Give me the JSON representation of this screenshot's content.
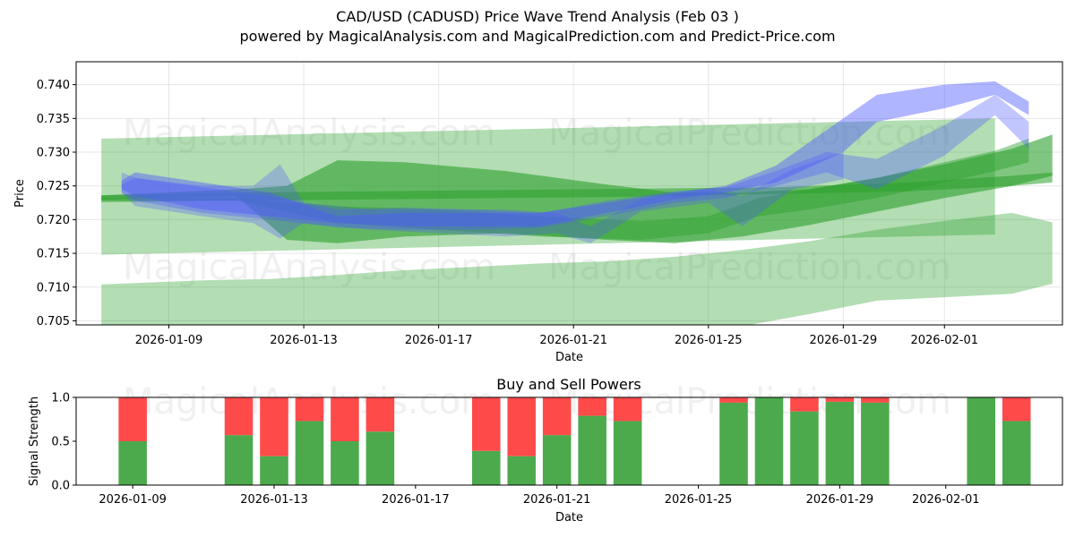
{
  "header": {
    "title": "CAD/USD (CADUSD) Price Wave Trend Analysis (Feb 03 )",
    "subtitle": "powered by MagicalAnalysis.com and MagicalPrediction.com and Predict-Price.com"
  },
  "watermarks": [
    "MagicalAnalysis.com",
    "MagicalPrediction.com"
  ],
  "colors": {
    "green_band": "#2ca02c",
    "blue_band": "#4f5bff",
    "buy": "#4caa4c",
    "sell": "#ff4a4a"
  },
  "chart_data": [
    {
      "type": "area",
      "title": "",
      "xlabel": "Date",
      "ylabel": "Price",
      "ylim": [
        0.7044,
        0.7434
      ],
      "xlim_days": [
        -2.75,
        26.5
      ],
      "x_origin": "2026-01-09",
      "xticks": [
        {
          "day": 0,
          "label": "2026-01-09"
        },
        {
          "day": 4,
          "label": "2026-01-13"
        },
        {
          "day": 8,
          "label": "2026-01-17"
        },
        {
          "day": 12,
          "label": "2026-01-21"
        },
        {
          "day": 16,
          "label": "2026-01-25"
        },
        {
          "day": 20,
          "label": "2026-01-29"
        },
        {
          "day": 23,
          "label": "2026-02-01"
        }
      ],
      "yticks": [
        0.705,
        0.71,
        0.715,
        0.72,
        0.725,
        0.73,
        0.735,
        0.74
      ],
      "green_bands": [
        {
          "x": [
            -2,
            24.5
          ],
          "upper": [
            0.732,
            0.735
          ],
          "lower": [
            0.7148,
            0.7178
          ]
        },
        {
          "x": [
            -2,
            1,
            3,
            5,
            7,
            9,
            11,
            13,
            15,
            17,
            19,
            21,
            23,
            25,
            26.2
          ],
          "upper": [
            0.7104,
            0.711,
            0.7112,
            0.7118,
            0.7125,
            0.713,
            0.7135,
            0.7138,
            0.7145,
            0.7155,
            0.7168,
            0.7185,
            0.7198,
            0.721,
            0.7196
          ],
          "lower": [
            0.704,
            0.704,
            0.704,
            0.704,
            0.704,
            0.704,
            0.704,
            0.704,
            0.704,
            0.7042,
            0.706,
            0.708,
            0.7085,
            0.709,
            0.7105
          ]
        },
        {
          "x": [
            -2,
            2,
            6,
            10,
            14,
            18,
            22,
            25,
            26.2
          ],
          "upper": [
            0.7236,
            0.724,
            0.7242,
            0.7244,
            0.7246,
            0.7248,
            0.7255,
            0.7265,
            0.727
          ],
          "lower": [
            0.7226,
            0.7228,
            0.723,
            0.7232,
            0.7234,
            0.7238,
            0.7242,
            0.725,
            0.7255
          ]
        },
        {
          "x": [
            -2,
            2,
            3.5,
            5,
            7,
            10,
            13,
            15,
            17,
            19,
            21,
            23,
            25,
            26.2
          ],
          "upper": [
            0.7236,
            0.7245,
            0.725,
            0.7288,
            0.7285,
            0.7272,
            0.7252,
            0.724,
            0.724,
            0.7245,
            0.7262,
            0.7282,
            0.7305,
            0.7326
          ],
          "lower": [
            0.723,
            0.7235,
            0.717,
            0.7165,
            0.7175,
            0.718,
            0.717,
            0.7165,
            0.7175,
            0.7192,
            0.7212,
            0.7232,
            0.725,
            0.7265
          ]
        },
        {
          "x": [
            -2,
            2,
            5,
            8,
            11,
            14,
            16,
            17.5,
            19,
            21,
            23,
            24.5,
            25.5
          ],
          "upper": [
            0.7232,
            0.7232,
            0.722,
            0.7215,
            0.7205,
            0.7198,
            0.7205,
            0.7232,
            0.7245,
            0.7262,
            0.7285,
            0.7302,
            0.732
          ],
          "lower": [
            0.7228,
            0.7228,
            0.7195,
            0.7185,
            0.7175,
            0.717,
            0.718,
            0.7205,
            0.7215,
            0.7232,
            0.7255,
            0.7272,
            0.7285
          ]
        }
      ],
      "blue_bands": [
        {
          "x": [
            -1.4,
            -1,
            1,
            3,
            5,
            7,
            9,
            11,
            13,
            15,
            16.5,
            18,
            20,
            21,
            23,
            24.5,
            25.5
          ],
          "upper": [
            0.7258,
            0.727,
            0.7255,
            0.724,
            0.7205,
            0.721,
            0.721,
            0.721,
            0.7225,
            0.724,
            0.725,
            0.728,
            0.735,
            0.7385,
            0.74,
            0.7405,
            0.7375
          ],
          "lower": [
            0.7245,
            0.7235,
            0.7215,
            0.7205,
            0.7195,
            0.719,
            0.719,
            0.719,
            0.721,
            0.723,
            0.724,
            0.7255,
            0.73,
            0.7345,
            0.7365,
            0.7385,
            0.7355
          ]
        },
        {
          "x": [
            -1.4,
            -1,
            1,
            3,
            5,
            7,
            9,
            11,
            13,
            15,
            16.5,
            18,
            19.5,
            21,
            23,
            24.5,
            25.5
          ],
          "upper": [
            0.7252,
            0.7262,
            0.7248,
            0.7235,
            0.7215,
            0.7218,
            0.7215,
            0.721,
            0.7228,
            0.7242,
            0.7248,
            0.7272,
            0.73,
            0.729,
            0.734,
            0.7385,
            0.7345
          ],
          "lower": [
            0.724,
            0.7228,
            0.721,
            0.72,
            0.7188,
            0.7185,
            0.7185,
            0.7188,
            0.7205,
            0.7225,
            0.7232,
            0.725,
            0.727,
            0.7245,
            0.7295,
            0.7355,
            0.7305
          ]
        },
        {
          "x": [
            -1.4,
            -1,
            1,
            2.5,
            3.3,
            4,
            6,
            8,
            10,
            11.5,
            12.5,
            14,
            16,
            17,
            18.5,
            20
          ],
          "upper": [
            0.727,
            0.7262,
            0.725,
            0.725,
            0.7282,
            0.7225,
            0.7215,
            0.7215,
            0.7215,
            0.721,
            0.719,
            0.723,
            0.7245,
            0.7235,
            0.7275,
            0.73
          ],
          "lower": [
            0.724,
            0.722,
            0.7205,
            0.7195,
            0.7172,
            0.7195,
            0.7185,
            0.718,
            0.7175,
            0.718,
            0.7165,
            0.7212,
            0.7225,
            0.719,
            0.7245,
            0.726
          ]
        }
      ]
    },
    {
      "type": "bar",
      "title": "Buy and Sell Powers",
      "xlabel": "Date",
      "ylabel": "Signal Strength",
      "ylim": [
        0,
        1
      ],
      "xlim_days": [
        -1.6,
        26.3
      ],
      "yticks": [
        0.0,
        0.5,
        1.0
      ],
      "xticks": [
        {
          "day": 0,
          "label": "2026-01-09"
        },
        {
          "day": 4,
          "label": "2026-01-13"
        },
        {
          "day": 8,
          "label": "2026-01-17"
        },
        {
          "day": 12,
          "label": "2026-01-21"
        },
        {
          "day": 16,
          "label": "2026-01-25"
        },
        {
          "day": 20,
          "label": "2026-01-29"
        },
        {
          "day": 23,
          "label": "2026-02-01"
        }
      ],
      "series": [
        {
          "name": "Buy",
          "color": "#4caa4c"
        },
        {
          "name": "Sell",
          "color": "#ff4a4a"
        }
      ],
      "bars": [
        {
          "day": 0,
          "buy": 0.5
        },
        {
          "day": 3,
          "buy": 0.57
        },
        {
          "day": 4,
          "buy": 0.33
        },
        {
          "day": 5,
          "buy": 0.73
        },
        {
          "day": 6,
          "buy": 0.5
        },
        {
          "day": 7,
          "buy": 0.61
        },
        {
          "day": 10,
          "buy": 0.39
        },
        {
          "day": 11,
          "buy": 0.33
        },
        {
          "day": 12,
          "buy": 0.57
        },
        {
          "day": 13,
          "buy": 0.79
        },
        {
          "day": 14,
          "buy": 0.73
        },
        {
          "day": 17,
          "buy": 0.94
        },
        {
          "day": 18,
          "buy": 1.0
        },
        {
          "day": 19,
          "buy": 0.84
        },
        {
          "day": 20,
          "buy": 0.95
        },
        {
          "day": 21,
          "buy": 0.94
        },
        {
          "day": 24,
          "buy": 1.0
        },
        {
          "day": 25,
          "buy": 0.73
        }
      ]
    }
  ]
}
